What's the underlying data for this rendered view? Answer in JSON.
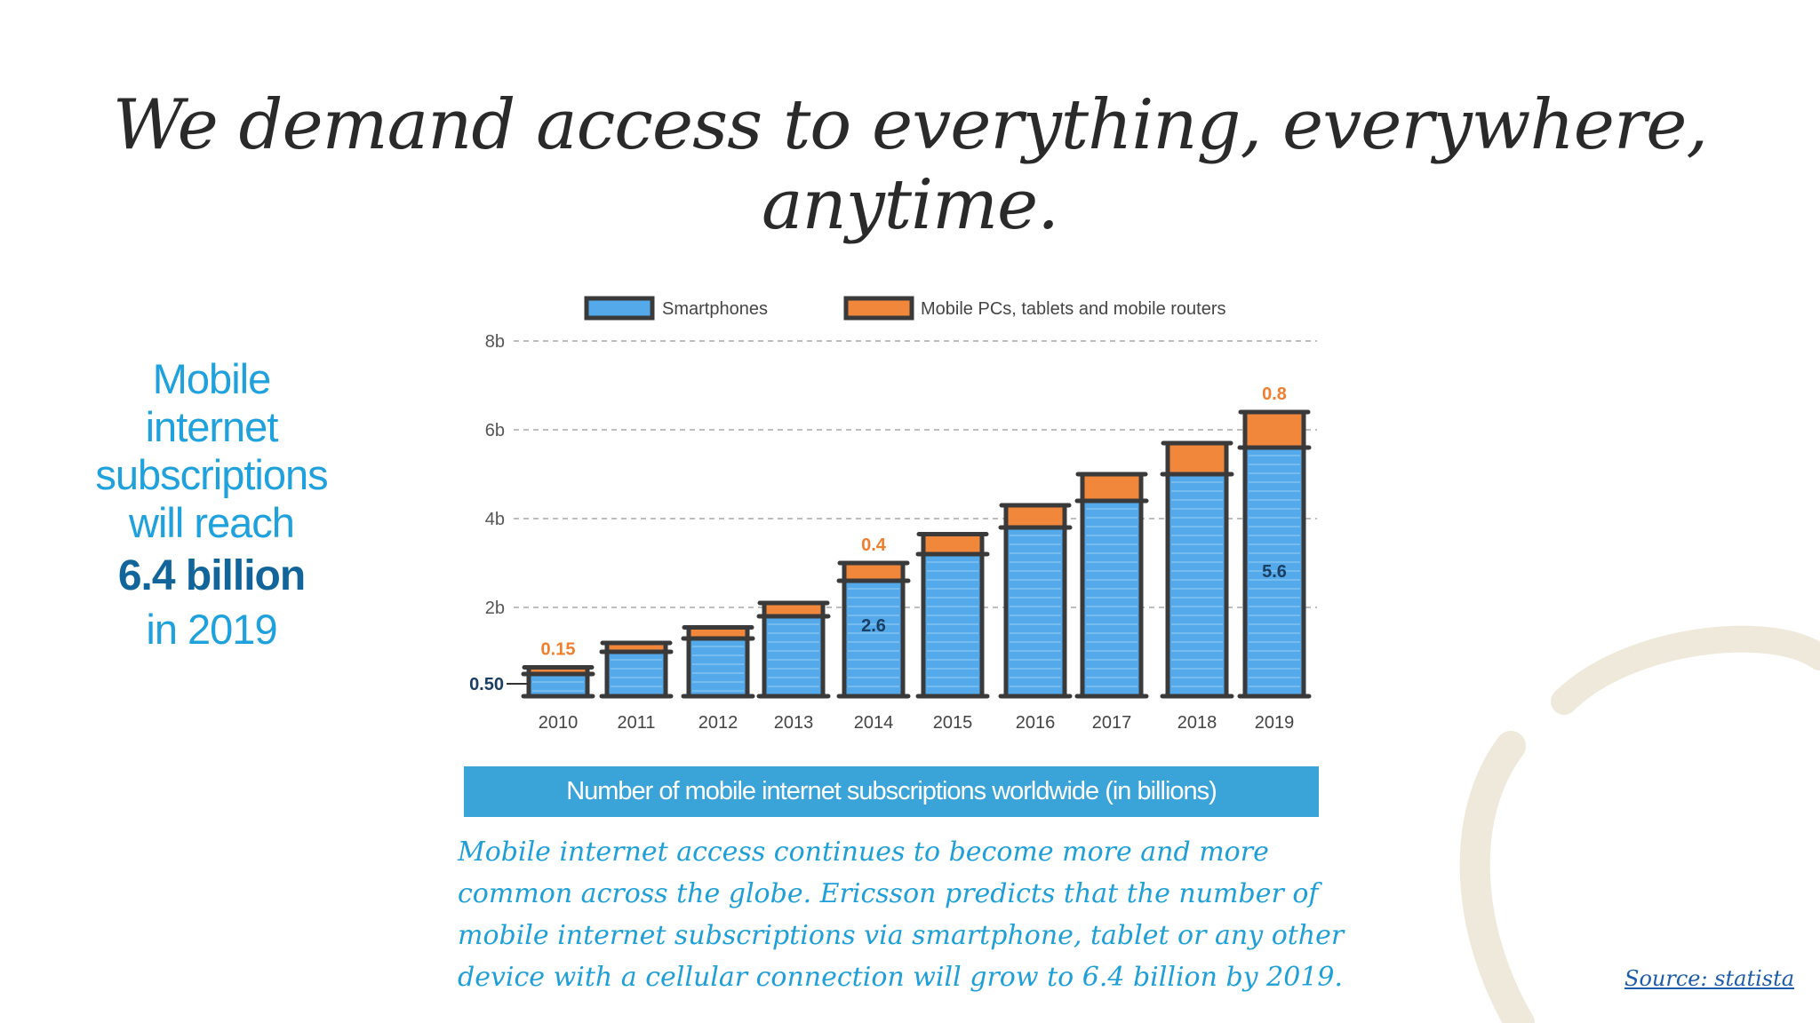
{
  "title": "We demand access to everything, everywhere, anytime.",
  "side_text": {
    "line1": "Mobile",
    "line2": "internet",
    "line3": "subscriptions",
    "line4": "will reach",
    "highlight": "6.4 billion",
    "line6": "in 2019"
  },
  "caption": "Number of mobile internet subscriptions worldwide (in billions)",
  "description": "Mobile internet access continues to become more and more common across the globe. Ericsson predicts that the number of mobile internet subscriptions via smartphone, tablet or any other device with a cellular connection will grow to 6.4 billion by 2019.",
  "source_link": "Source: statista",
  "colors": {
    "smartphones": "#54a9ea",
    "other": "#f0873a",
    "caption_bar": "#3aa3d8",
    "side_text": "#1ea1dd",
    "side_highlight": "#12659b"
  },
  "chart_data": {
    "type": "bar",
    "stacked": true,
    "categories": [
      "2010",
      "2011",
      "2012",
      "2013",
      "2014",
      "2015",
      "2016",
      "2017",
      "2018",
      "2019"
    ],
    "series": [
      {
        "name": "Smartphones",
        "values": [
          0.5,
          1.0,
          1.3,
          1.8,
          2.6,
          3.2,
          3.8,
          4.4,
          5.0,
          5.6
        ]
      },
      {
        "name": "Mobile PCs, tablets and mobile routers",
        "values": [
          0.15,
          0.2,
          0.25,
          0.3,
          0.4,
          0.45,
          0.5,
          0.6,
          0.7,
          0.8
        ]
      }
    ],
    "yticks": [
      "2b",
      "4b",
      "6b",
      "8b"
    ],
    "ylim": [
      0,
      8
    ],
    "baseline_label": "0.50",
    "data_labels": [
      {
        "year": "2010",
        "series": "other",
        "text": "0.15"
      },
      {
        "year": "2014",
        "series": "smartphones",
        "text": "2.6"
      },
      {
        "year": "2014",
        "series": "other",
        "text": "0.4"
      },
      {
        "year": "2019",
        "series": "smartphones",
        "text": "5.6"
      },
      {
        "year": "2019",
        "series": "other",
        "text": "0.8"
      }
    ],
    "legend_position": "top",
    "grid": true
  }
}
